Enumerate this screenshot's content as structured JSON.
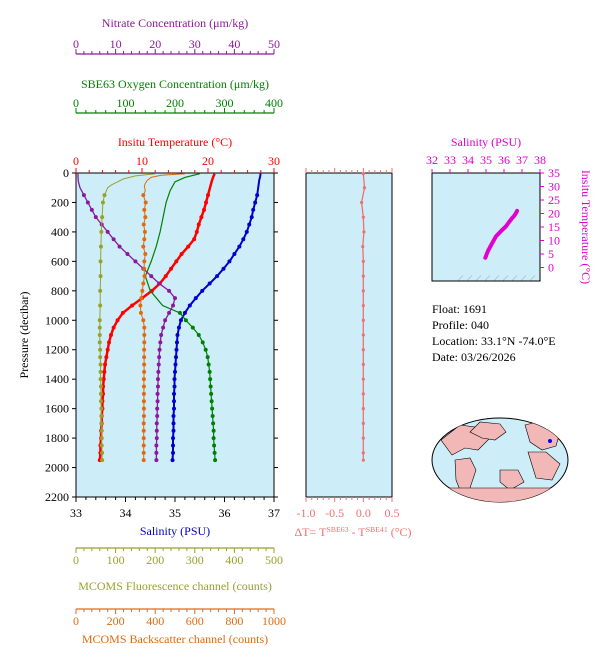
{
  "float_info": {
    "float": "Float:  1691",
    "profile": "Profile:  040",
    "location": "Location:  33.1°N  -74.0°E",
    "date": "Date:  03/26/2026"
  },
  "colors": {
    "temperature": "#ff0000",
    "salinity": "#0000cc",
    "oxygen": "#008000",
    "nitrate": "#8b1a9a",
    "fluorescence": "#9aa12a",
    "backscatter": "#e06a10",
    "delta_t": "#f07070",
    "ts_curve": "#e000d0",
    "panel_bg": "#cdeef8"
  },
  "chart_data": [
    {
      "type": "line",
      "name": "main-profile",
      "ylabel": "Pressure (decibar)",
      "ylim": [
        2200,
        0
      ],
      "yticks": [
        "0",
        "200",
        "400",
        "600",
        "800",
        "1000",
        "1200",
        "1400",
        "1600",
        "1800",
        "2000",
        "2200"
      ],
      "axes": {
        "salinity": {
          "label": "Salinity (PSU)",
          "range": [
            33,
            37
          ],
          "ticks": [
            "33",
            "34",
            "35",
            "36",
            "37"
          ]
        },
        "temperature": {
          "label": "Insitu Temperature (°C)",
          "range": [
            0,
            30
          ],
          "ticks": [
            "0",
            "10",
            "20",
            "30"
          ]
        },
        "oxygen": {
          "label": "SBE63 Oxygen Concentration (μm/kg)",
          "range": [
            0,
            400
          ],
          "ticks": [
            "0",
            "100",
            "200",
            "300",
            "400"
          ]
        },
        "nitrate": {
          "label": "Nitrate Concentration (μm/kg)",
          "range": [
            0,
            50
          ],
          "ticks": [
            "0",
            "10",
            "20",
            "30",
            "40",
            "50"
          ]
        },
        "fluorescence": {
          "label": "MCOMS Fluorescence channel (counts)",
          "range": [
            0,
            500
          ],
          "ticks": [
            "0",
            "100",
            "200",
            "300",
            "400",
            "500"
          ]
        },
        "backscatter": {
          "label": "MCOMS Backscatter channel (counts)",
          "range": [
            0,
            1000
          ],
          "ticks": [
            "0",
            "200",
            "400",
            "600",
            "800",
            "1000"
          ]
        }
      },
      "series": [
        {
          "key": "temperature",
          "axis": "temperature",
          "p": [
            5,
            25,
            50,
            100,
            150,
            200,
            250,
            300,
            350,
            400,
            450,
            500,
            550,
            600,
            650,
            700,
            750,
            800,
            850,
            900,
            950,
            1000,
            1050,
            1100,
            1150,
            1200,
            1250,
            1300,
            1350,
            1400,
            1450,
            1500,
            1550,
            1600,
            1650,
            1700,
            1750,
            1800,
            1850,
            1900,
            1950
          ],
          "v": [
            21.0,
            20.8,
            20.6,
            20.3,
            20.0,
            19.7,
            19.4,
            19.0,
            18.6,
            18.3,
            17.9,
            17.0,
            16.0,
            15.2,
            14.4,
            13.6,
            12.7,
            11.5,
            10.0,
            8.5,
            7.1,
            6.3,
            5.7,
            5.3,
            5.0,
            4.8,
            4.6,
            4.4,
            4.3,
            4.2,
            4.1,
            4.1,
            4.0,
            4.0,
            3.9,
            3.9,
            3.8,
            3.8,
            3.7,
            3.7,
            3.6
          ]
        },
        {
          "key": "salinity",
          "axis": "salinity",
          "p": [
            5,
            25,
            50,
            100,
            150,
            200,
            250,
            300,
            350,
            400,
            450,
            500,
            550,
            600,
            650,
            700,
            750,
            800,
            850,
            900,
            950,
            1000,
            1050,
            1100,
            1150,
            1200,
            1250,
            1300,
            1350,
            1400,
            1450,
            1500,
            1550,
            1600,
            1650,
            1700,
            1750,
            1800,
            1850,
            1900,
            1950
          ],
          "v": [
            36.73,
            36.72,
            36.7,
            36.68,
            36.66,
            36.62,
            36.58,
            36.55,
            36.5,
            36.45,
            36.38,
            36.3,
            36.2,
            36.1,
            35.98,
            35.85,
            35.7,
            35.55,
            35.42,
            35.3,
            35.2,
            35.12,
            35.08,
            35.05,
            35.04,
            35.03,
            35.02,
            35.01,
            35.0,
            34.99,
            34.99,
            34.98,
            34.98,
            34.98,
            34.97,
            34.97,
            34.97,
            34.96,
            34.96,
            34.96,
            34.95
          ]
        },
        {
          "key": "oxygen",
          "axis": "oxygen",
          "p": [
            950,
            1000,
            1050,
            1100,
            1150,
            1200,
            1250,
            1300,
            1350,
            1400,
            1450,
            1500,
            1550,
            1600,
            1650,
            1700,
            1750,
            1800,
            1850,
            1900,
            1950
          ],
          "v": [
            210,
            222,
            236,
            248,
            256,
            262,
            266,
            268,
            270,
            271,
            272,
            273,
            274,
            275,
            276,
            277,
            278,
            278,
            279,
            280,
            281
          ]
        },
        {
          "key": "oxygen_shallow",
          "axis": "oxygen",
          "markers": false,
          "p": [
            5,
            30,
            60,
            120,
            200,
            300,
            400,
            500,
            600,
            700,
            800,
            900,
            950
          ],
          "v": [
            250,
            220,
            200,
            190,
            182,
            176,
            170,
            162,
            152,
            140,
            150,
            175,
            210
          ]
        },
        {
          "key": "nitrate",
          "axis": "nitrate",
          "p": [
            5,
            30,
            60,
            100,
            150,
            200,
            250,
            300,
            350,
            400,
            450,
            500,
            550,
            600,
            650,
            700,
            750,
            800,
            850,
            900,
            950,
            1000,
            1050,
            1100,
            1150,
            1200,
            1250,
            1300,
            1350,
            1400,
            1450,
            1500,
            1550,
            1600,
            1650,
            1700,
            1750,
            1800,
            1850,
            1900,
            1950
          ],
          "v": [
            0.5,
            0.5,
            0.6,
            1.0,
            2.0,
            3.0,
            4.0,
            5.0,
            6.5,
            8.0,
            9.5,
            11.0,
            13.0,
            15.0,
            17.0,
            19.0,
            21.0,
            23.5,
            25.0,
            24.5,
            23.5,
            22.5,
            22.0,
            21.5,
            21.3,
            21.1,
            21.0,
            20.9,
            20.8,
            20.7,
            20.7,
            20.6,
            20.6,
            20.5,
            20.5,
            20.4,
            20.4,
            20.4,
            20.3,
            20.3,
            20.3
          ]
        },
        {
          "key": "fluorescence",
          "axis": "fluorescence",
          "p": [
            5,
            20,
            40,
            60,
            80,
            100,
            150,
            200,
            300,
            400,
            500,
            600,
            700,
            800,
            900,
            1000,
            1050,
            1100,
            1150,
            1200,
            1250,
            1300,
            1350,
            1400,
            1450,
            1500,
            1550,
            1600,
            1650,
            1700,
            1750,
            1800,
            1850,
            1900,
            1950
          ],
          "v": [
            200,
            150,
            120,
            105,
            90,
            80,
            72,
            68,
            66,
            64,
            63,
            62,
            62,
            61,
            61,
            60,
            60,
            60,
            60,
            61,
            61,
            62,
            62,
            62,
            63,
            63,
            63,
            64,
            64,
            64,
            65,
            65,
            65,
            66,
            66
          ]
        },
        {
          "key": "backscatter",
          "axis": "backscatter",
          "p": [
            5,
            15,
            30,
            50,
            70,
            90,
            120,
            150,
            200,
            250,
            300,
            350,
            400,
            450,
            500,
            550,
            600,
            650,
            700,
            750,
            800,
            850,
            900,
            950,
            1000,
            1050,
            1100,
            1150,
            1200,
            1250,
            1300,
            1350,
            1400,
            1450,
            1500,
            1550,
            1600,
            1650,
            1700,
            1750,
            1800,
            1850,
            1900,
            1950
          ],
          "v": [
            550,
            430,
            380,
            360,
            350,
            345,
            350,
            340,
            352,
            345,
            350,
            342,
            348,
            345,
            340,
            350,
            345,
            344,
            346,
            340,
            335,
            330,
            325,
            328,
            340,
            345,
            345,
            345,
            344,
            344,
            344,
            344,
            343,
            343,
            343,
            343,
            343,
            343,
            342,
            342,
            342,
            342,
            342,
            342
          ]
        }
      ]
    },
    {
      "type": "line",
      "name": "delta-t",
      "xlabel": "ΔT= T^SBE63 - T^SBE41 (°C)",
      "xlim": [
        -1.0,
        0.5
      ],
      "xticks": [
        "-1.0",
        "-0.5",
        "0.0",
        "0.5"
      ],
      "series": [
        {
          "key": "delta_t",
          "p": [
            5,
            100,
            200,
            300,
            400,
            500,
            600,
            700,
            800,
            900,
            1000,
            1100,
            1200,
            1300,
            1400,
            1500,
            1600,
            1700,
            1800,
            1900,
            1950
          ],
          "v": [
            0.0,
            0.02,
            -0.03,
            0.0,
            0.01,
            -0.01,
            0.0,
            0.0,
            0.0,
            0.0,
            0.0,
            0.0,
            0.0,
            0.0,
            0.0,
            0.0,
            0.0,
            0.0,
            0.0,
            0.0,
            0.0
          ]
        }
      ]
    },
    {
      "type": "scatter",
      "name": "ts-diagram",
      "xlabel": "Salinity (PSU)",
      "ylabel": "Insitu Temperature (°C)",
      "xlim": [
        32,
        38
      ],
      "ylim": [
        -5,
        35
      ],
      "xticks": [
        "32",
        "33",
        "34",
        "35",
        "36",
        "37",
        "38"
      ],
      "yticks": [
        "0",
        "5",
        "10",
        "15",
        "20",
        "25",
        "30",
        "35"
      ],
      "series": [
        {
          "key": "ts",
          "x": [
            34.96,
            34.98,
            35.0,
            35.03,
            35.12,
            35.3,
            35.55,
            35.85,
            36.1,
            36.3,
            36.45,
            36.55,
            36.62,
            36.68,
            36.73
          ],
          "y": [
            3.6,
            3.9,
            4.2,
            4.8,
            6.3,
            8.5,
            11.5,
            13.6,
            15.2,
            17.0,
            18.3,
            19.0,
            19.7,
            20.3,
            21.0
          ]
        }
      ]
    }
  ]
}
